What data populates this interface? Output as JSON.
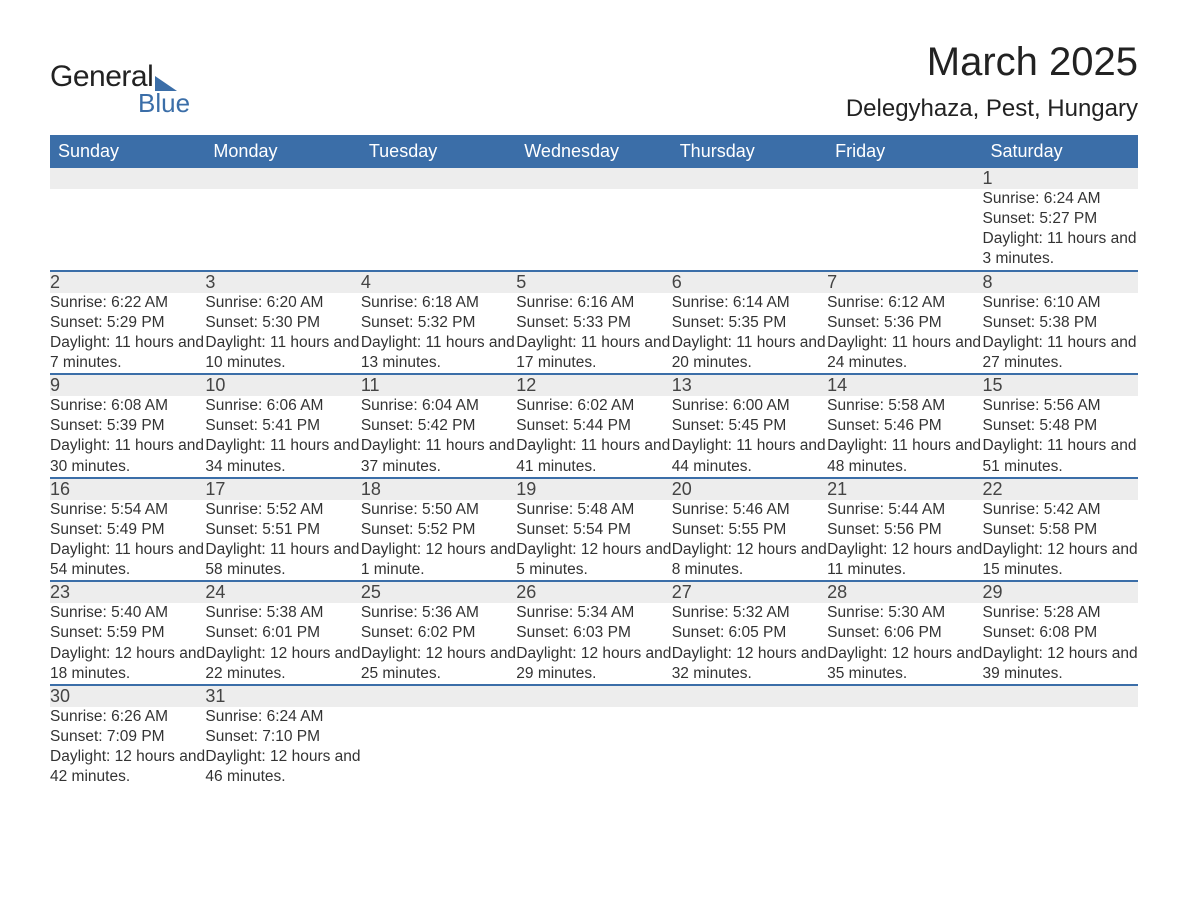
{
  "logo": {
    "text1": "General",
    "text2": "Blue"
  },
  "title": "March 2025",
  "location": "Delegyhaza, Pest, Hungary",
  "colors": {
    "header_bg": "#3b6ea8",
    "header_text": "#ffffff",
    "daynum_bg": "#ededed",
    "border": "#3b6ea8",
    "body_text": "#333333",
    "page_bg": "#ffffff"
  },
  "typography": {
    "title_fontsize": 40,
    "location_fontsize": 24,
    "header_fontsize": 18,
    "daynum_fontsize": 18,
    "details_fontsize": 15.5
  },
  "day_headers": [
    "Sunday",
    "Monday",
    "Tuesday",
    "Wednesday",
    "Thursday",
    "Friday",
    "Saturday"
  ],
  "weeks": [
    [
      null,
      null,
      null,
      null,
      null,
      null,
      {
        "n": "1",
        "sunrise": "Sunrise: 6:24 AM",
        "sunset": "Sunset: 5:27 PM",
        "daylight": "Daylight: 11 hours and 3 minutes."
      }
    ],
    [
      {
        "n": "2",
        "sunrise": "Sunrise: 6:22 AM",
        "sunset": "Sunset: 5:29 PM",
        "daylight": "Daylight: 11 hours and 7 minutes."
      },
      {
        "n": "3",
        "sunrise": "Sunrise: 6:20 AM",
        "sunset": "Sunset: 5:30 PM",
        "daylight": "Daylight: 11 hours and 10 minutes."
      },
      {
        "n": "4",
        "sunrise": "Sunrise: 6:18 AM",
        "sunset": "Sunset: 5:32 PM",
        "daylight": "Daylight: 11 hours and 13 minutes."
      },
      {
        "n": "5",
        "sunrise": "Sunrise: 6:16 AM",
        "sunset": "Sunset: 5:33 PM",
        "daylight": "Daylight: 11 hours and 17 minutes."
      },
      {
        "n": "6",
        "sunrise": "Sunrise: 6:14 AM",
        "sunset": "Sunset: 5:35 PM",
        "daylight": "Daylight: 11 hours and 20 minutes."
      },
      {
        "n": "7",
        "sunrise": "Sunrise: 6:12 AM",
        "sunset": "Sunset: 5:36 PM",
        "daylight": "Daylight: 11 hours and 24 minutes."
      },
      {
        "n": "8",
        "sunrise": "Sunrise: 6:10 AM",
        "sunset": "Sunset: 5:38 PM",
        "daylight": "Daylight: 11 hours and 27 minutes."
      }
    ],
    [
      {
        "n": "9",
        "sunrise": "Sunrise: 6:08 AM",
        "sunset": "Sunset: 5:39 PM",
        "daylight": "Daylight: 11 hours and 30 minutes."
      },
      {
        "n": "10",
        "sunrise": "Sunrise: 6:06 AM",
        "sunset": "Sunset: 5:41 PM",
        "daylight": "Daylight: 11 hours and 34 minutes."
      },
      {
        "n": "11",
        "sunrise": "Sunrise: 6:04 AM",
        "sunset": "Sunset: 5:42 PM",
        "daylight": "Daylight: 11 hours and 37 minutes."
      },
      {
        "n": "12",
        "sunrise": "Sunrise: 6:02 AM",
        "sunset": "Sunset: 5:44 PM",
        "daylight": "Daylight: 11 hours and 41 minutes."
      },
      {
        "n": "13",
        "sunrise": "Sunrise: 6:00 AM",
        "sunset": "Sunset: 5:45 PM",
        "daylight": "Daylight: 11 hours and 44 minutes."
      },
      {
        "n": "14",
        "sunrise": "Sunrise: 5:58 AM",
        "sunset": "Sunset: 5:46 PM",
        "daylight": "Daylight: 11 hours and 48 minutes."
      },
      {
        "n": "15",
        "sunrise": "Sunrise: 5:56 AM",
        "sunset": "Sunset: 5:48 PM",
        "daylight": "Daylight: 11 hours and 51 minutes."
      }
    ],
    [
      {
        "n": "16",
        "sunrise": "Sunrise: 5:54 AM",
        "sunset": "Sunset: 5:49 PM",
        "daylight": "Daylight: 11 hours and 54 minutes."
      },
      {
        "n": "17",
        "sunrise": "Sunrise: 5:52 AM",
        "sunset": "Sunset: 5:51 PM",
        "daylight": "Daylight: 11 hours and 58 minutes."
      },
      {
        "n": "18",
        "sunrise": "Sunrise: 5:50 AM",
        "sunset": "Sunset: 5:52 PM",
        "daylight": "Daylight: 12 hours and 1 minute."
      },
      {
        "n": "19",
        "sunrise": "Sunrise: 5:48 AM",
        "sunset": "Sunset: 5:54 PM",
        "daylight": "Daylight: 12 hours and 5 minutes."
      },
      {
        "n": "20",
        "sunrise": "Sunrise: 5:46 AM",
        "sunset": "Sunset: 5:55 PM",
        "daylight": "Daylight: 12 hours and 8 minutes."
      },
      {
        "n": "21",
        "sunrise": "Sunrise: 5:44 AM",
        "sunset": "Sunset: 5:56 PM",
        "daylight": "Daylight: 12 hours and 11 minutes."
      },
      {
        "n": "22",
        "sunrise": "Sunrise: 5:42 AM",
        "sunset": "Sunset: 5:58 PM",
        "daylight": "Daylight: 12 hours and 15 minutes."
      }
    ],
    [
      {
        "n": "23",
        "sunrise": "Sunrise: 5:40 AM",
        "sunset": "Sunset: 5:59 PM",
        "daylight": "Daylight: 12 hours and 18 minutes."
      },
      {
        "n": "24",
        "sunrise": "Sunrise: 5:38 AM",
        "sunset": "Sunset: 6:01 PM",
        "daylight": "Daylight: 12 hours and 22 minutes."
      },
      {
        "n": "25",
        "sunrise": "Sunrise: 5:36 AM",
        "sunset": "Sunset: 6:02 PM",
        "daylight": "Daylight: 12 hours and 25 minutes."
      },
      {
        "n": "26",
        "sunrise": "Sunrise: 5:34 AM",
        "sunset": "Sunset: 6:03 PM",
        "daylight": "Daylight: 12 hours and 29 minutes."
      },
      {
        "n": "27",
        "sunrise": "Sunrise: 5:32 AM",
        "sunset": "Sunset: 6:05 PM",
        "daylight": "Daylight: 12 hours and 32 minutes."
      },
      {
        "n": "28",
        "sunrise": "Sunrise: 5:30 AM",
        "sunset": "Sunset: 6:06 PM",
        "daylight": "Daylight: 12 hours and 35 minutes."
      },
      {
        "n": "29",
        "sunrise": "Sunrise: 5:28 AM",
        "sunset": "Sunset: 6:08 PM",
        "daylight": "Daylight: 12 hours and 39 minutes."
      }
    ],
    [
      {
        "n": "30",
        "sunrise": "Sunrise: 6:26 AM",
        "sunset": "Sunset: 7:09 PM",
        "daylight": "Daylight: 12 hours and 42 minutes."
      },
      {
        "n": "31",
        "sunrise": "Sunrise: 6:24 AM",
        "sunset": "Sunset: 7:10 PM",
        "daylight": "Daylight: 12 hours and 46 minutes."
      },
      null,
      null,
      null,
      null,
      null
    ]
  ]
}
